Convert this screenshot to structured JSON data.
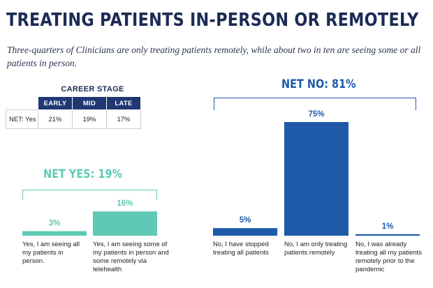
{
  "title": "TREATING PATIENTS IN-PERSON OR REMOTELY",
  "subtitle": "Three-quarters of Clinicians are only treating patients remotely, while about two in ten are seeing some or all patients in person.",
  "career_stage": {
    "label": "CAREER STAGE",
    "columns": [
      "EARLY",
      "MID",
      "LATE"
    ],
    "row_label": "NET: Yes",
    "values": [
      "21%",
      "19%",
      "17%"
    ]
  },
  "net_yes": "NET YES: 19%",
  "net_no": "NET NO: 81%",
  "colors": {
    "yes": "#5ecab5",
    "no": "#1e5aa8",
    "navy": "#1f3873"
  },
  "chart_data": {
    "type": "bar",
    "categories": [
      "Yes, I am seeing all my patients in person.",
      "Yes, I am seeing some of my patients in person and some remotely via telehealth",
      "No, I have stopped treating all patients",
      "No, I am only treating patients remotely",
      "No, I was already treating all my patients remotely prior to the pandemic"
    ],
    "values": [
      3,
      16,
      5,
      75,
      1
    ],
    "data_labels": [
      "3%",
      "16%",
      "5%",
      "75%",
      "1%"
    ],
    "groups": [
      "yes",
      "yes",
      "no",
      "no",
      "no"
    ],
    "ylim": [
      0,
      75
    ]
  }
}
